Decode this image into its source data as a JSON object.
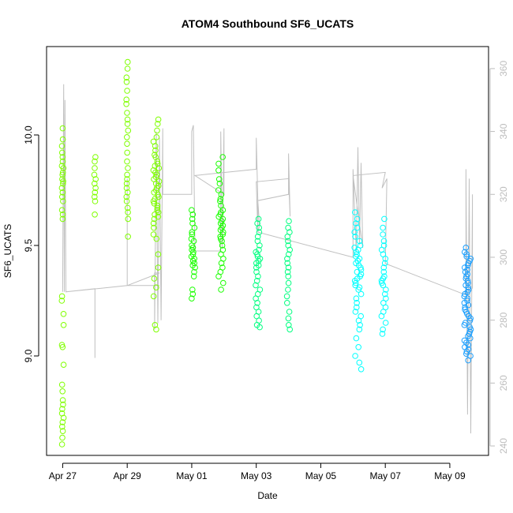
{
  "chart_data": {
    "type": "scatter",
    "title": "ATOM4 Southbound SF6_UCATS",
    "xlabel": "Date",
    "ylabel": "SF6_UCATS",
    "x_ticks": [
      "Apr 27",
      "Apr 29",
      "May 01",
      "May 03",
      "May 05",
      "May 07",
      "May 09"
    ],
    "x_tick_days": [
      0,
      2,
      4,
      6,
      8,
      10,
      12
    ],
    "xlim_days": [
      -0.5,
      13.2
    ],
    "ylim": [
      8.55,
      10.4
    ],
    "y_ticks": [
      9.0,
      9.5,
      10.0
    ],
    "y2lim": [
      237,
      367
    ],
    "y2_ticks": [
      240,
      260,
      280,
      300,
      320,
      340,
      360
    ],
    "grid": false,
    "series": [
      {
        "color": "#7fff00",
        "clusters": [
          {
            "day": 0.0,
            "width": 0.06,
            "values": [
              10.03,
              9.98,
              9.95,
              9.92,
              9.9,
              9.88,
              9.86,
              9.85,
              9.83,
              9.82,
              9.8,
              9.79,
              9.78,
              9.76,
              9.74,
              9.72,
              9.7,
              9.66,
              9.64,
              9.62,
              9.27,
              9.25,
              9.19,
              9.14,
              9.05,
              9.04,
              8.96,
              8.87,
              8.84,
              8.8,
              8.78,
              8.76,
              8.74,
              8.72,
              8.7,
              8.68,
              8.66,
              8.63,
              8.6
            ]
          },
          {
            "day": 1.0,
            "width": 0.05,
            "values": [
              9.9,
              9.88,
              9.85,
              9.82,
              9.8,
              9.78,
              9.76,
              9.74,
              9.72,
              9.7,
              9.64
            ]
          },
          {
            "day": 2.0,
            "width": 0.06,
            "values": [
              10.33,
              10.3,
              10.26,
              10.24,
              10.2,
              10.16,
              10.14,
              10.1,
              10.07,
              10.05,
              10.02,
              9.99,
              9.96,
              9.92,
              9.88,
              9.85,
              9.82,
              9.8,
              9.78,
              9.76,
              9.74,
              9.72,
              9.7,
              9.67,
              9.65,
              9.62,
              9.54
            ]
          },
          {
            "day": 2.9,
            "width": 0.18,
            "values": [
              10.07,
              10.05,
              10.02,
              9.99,
              9.97,
              9.95,
              9.93,
              9.91,
              9.9,
              9.88,
              9.87,
              9.86,
              9.85,
              9.84,
              9.83,
              9.82,
              9.81,
              9.8,
              9.79,
              9.78,
              9.77,
              9.76,
              9.75,
              9.74,
              9.73,
              9.72,
              9.71,
              9.7,
              9.69,
              9.68,
              9.67,
              9.66,
              9.65,
              9.64,
              9.63,
              9.62,
              9.6,
              9.58,
              9.55,
              9.53,
              9.46,
              9.4,
              9.35,
              9.31,
              9.27,
              9.14,
              9.12
            ]
          }
        ]
      },
      {
        "color": "#1aff00",
        "clusters": [
          {
            "day": 4.05,
            "width": 0.12,
            "values": [
              9.66,
              9.64,
              9.62,
              9.6,
              9.58,
              9.56,
              9.55,
              9.53,
              9.52,
              9.5,
              9.49,
              9.48,
              9.47,
              9.46,
              9.45,
              9.44,
              9.43,
              9.42,
              9.41,
              9.4,
              9.38,
              9.36,
              9.3,
              9.28,
              9.26
            ]
          },
          {
            "day": 4.9,
            "width": 0.16,
            "values": [
              9.9,
              9.87,
              9.84,
              9.8,
              9.78,
              9.75,
              9.73,
              9.71,
              9.7,
              9.68,
              9.66,
              9.65,
              9.64,
              9.63,
              9.62,
              9.61,
              9.6,
              9.59,
              9.58,
              9.57,
              9.56,
              9.55,
              9.54,
              9.53,
              9.52,
              9.5,
              9.48,
              9.46,
              9.44,
              9.42,
              9.4,
              9.38,
              9.36,
              9.33,
              9.3
            ]
          }
        ]
      },
      {
        "color": "#00ff80",
        "clusters": [
          {
            "day": 6.05,
            "width": 0.14,
            "values": [
              9.62,
              9.6,
              9.58,
              9.56,
              9.54,
              9.52,
              9.5,
              9.48,
              9.47,
              9.46,
              9.45,
              9.44,
              9.43,
              9.42,
              9.41,
              9.4,
              9.38,
              9.36,
              9.34,
              9.32,
              9.3,
              9.28,
              9.26,
              9.24,
              9.22,
              9.2,
              9.18,
              9.16,
              9.14,
              9.13
            ]
          },
          {
            "day": 7.0,
            "width": 0.1,
            "values": [
              9.61,
              9.58,
              9.56,
              9.54,
              9.52,
              9.5,
              9.48,
              9.46,
              9.44,
              9.42,
              9.4,
              9.38,
              9.36,
              9.33,
              9.3,
              9.27,
              9.24,
              9.2,
              9.17,
              9.14,
              9.12
            ]
          }
        ]
      },
      {
        "color": "#00ffff",
        "clusters": [
          {
            "day": 9.15,
            "width": 0.22,
            "values": [
              9.65,
              9.62,
              9.6,
              9.58,
              9.56,
              9.54,
              9.52,
              9.5,
              9.49,
              9.48,
              9.47,
              9.46,
              9.45,
              9.44,
              9.43,
              9.42,
              9.41,
              9.4,
              9.39,
              9.38,
              9.37,
              9.36,
              9.35,
              9.34,
              9.33,
              9.32,
              9.31,
              9.3,
              9.28,
              9.26,
              9.24,
              9.22,
              9.2,
              9.18,
              9.16,
              9.14,
              9.12,
              9.08,
              9.04,
              9.0,
              8.97,
              8.94
            ]
          },
          {
            "day": 9.95,
            "width": 0.16,
            "values": [
              9.62,
              9.58,
              9.55,
              9.52,
              9.5,
              9.48,
              9.46,
              9.44,
              9.42,
              9.4,
              9.38,
              9.36,
              9.35,
              9.34,
              9.33,
              9.32,
              9.3,
              9.28,
              9.26,
              9.24,
              9.22,
              9.2,
              9.18,
              9.15,
              9.12,
              9.1
            ]
          }
        ]
      },
      {
        "color": "#1a9fff",
        "clusters": [
          {
            "day": 12.55,
            "width": 0.2,
            "values": [
              9.49,
              9.47,
              9.46,
              9.45,
              9.44,
              9.43,
              9.42,
              9.41,
              9.4,
              9.39,
              9.38,
              9.37,
              9.36,
              9.35,
              9.34,
              9.33,
              9.32,
              9.31,
              9.3,
              9.29,
              9.28,
              9.27,
              9.26,
              9.25,
              9.24,
              9.23,
              9.22,
              9.21,
              9.2,
              9.19,
              9.18,
              9.17,
              9.16,
              9.15,
              9.14,
              9.13,
              9.12,
              9.11,
              9.1,
              9.09,
              9.08,
              9.07,
              9.06,
              9.05,
              9.04,
              9.03,
              9.02,
              9.01,
              9.0,
              8.98
            ]
          }
        ]
      }
    ],
    "altitude_trace": {
      "color": "#c0c0c0",
      "path": [
        [
          0.0,
          289
        ],
        [
          0.03,
          355
        ],
        [
          0.05,
          289
        ],
        [
          0.07,
          350
        ],
        [
          0.1,
          289
        ],
        [
          1.0,
          290
        ],
        [
          1.0,
          268
        ],
        [
          1.0,
          290
        ],
        [
          0.1,
          289
        ],
        [
          2.0,
          291
        ],
        [
          2.0,
          291
        ],
        [
          2.0,
          291
        ],
        [
          2.0,
          325
        ],
        [
          2.0,
          291
        ],
        [
          3.0,
          291
        ],
        [
          2.0,
          291
        ],
        [
          3.0,
          295
        ],
        [
          2.85,
          295
        ],
        [
          2.85,
          277
        ],
        [
          2.9,
          340
        ],
        [
          2.95,
          279
        ],
        [
          3.0,
          338
        ],
        [
          3.05,
          280
        ],
        [
          3.1,
          341
        ],
        [
          3.1,
          320
        ],
        [
          3.1,
          320
        ],
        [
          4.0,
          320
        ],
        [
          4.0,
          340
        ],
        [
          4.05,
          342
        ],
        [
          4.1,
          304
        ],
        [
          4.1,
          302
        ],
        [
          4.5,
          302
        ],
        [
          4.9,
          302
        ],
        [
          4.9,
          340
        ],
        [
          4.95,
          303
        ],
        [
          5.0,
          341
        ],
        [
          5.0,
          320
        ],
        [
          4.1,
          326
        ],
        [
          6.0,
          328
        ],
        [
          6.0,
          338
        ],
        [
          6.05,
          318
        ],
        [
          6.05,
          308
        ],
        [
          6.1,
          310
        ],
        [
          6.05,
          318
        ],
        [
          7.0,
          320
        ],
        [
          7.0,
          333
        ],
        [
          7.05,
          313
        ],
        [
          7.0,
          325
        ],
        [
          6.0,
          324
        ],
        [
          6.05,
          308
        ],
        [
          9.0,
          300
        ],
        [
          9.0,
          328
        ],
        [
          9.1,
          302
        ],
        [
          9.15,
          335
        ],
        [
          9.2,
          304
        ],
        [
          9.25,
          330
        ],
        [
          9.3,
          303
        ],
        [
          9.0,
          326
        ],
        [
          10.0,
          327
        ],
        [
          9.9,
          322
        ],
        [
          10.05,
          325
        ],
        [
          10.0,
          298
        ],
        [
          12.5,
          288
        ],
        [
          12.5,
          328
        ],
        [
          12.55,
          250
        ],
        [
          12.6,
          325
        ],
        [
          12.65,
          244
        ],
        [
          12.7,
          320
        ],
        [
          12.7,
          290
        ]
      ]
    }
  }
}
